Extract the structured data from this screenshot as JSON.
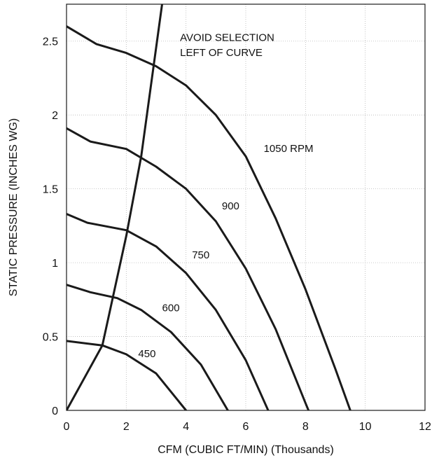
{
  "chart_data": {
    "type": "line",
    "xlabel": "CFM (CUBIC FT/MIN) (Thousands)",
    "ylabel": "STATIC PRESSURE (INCHES WG)",
    "xlim": [
      0,
      12
    ],
    "ylim": [
      0,
      2.75
    ],
    "x_ticks": [
      "0",
      "2",
      "4",
      "6",
      "8",
      "10",
      "12"
    ],
    "y_ticks": [
      "0",
      "0.5",
      "1",
      "1.5",
      "2",
      "2.5"
    ],
    "grid": true,
    "series": [
      {
        "name": "1050 RPM",
        "x": [
          0,
          1,
          2,
          3,
          4,
          5,
          6,
          7,
          8,
          9,
          9.5
        ],
        "y": [
          2.6,
          2.48,
          2.42,
          2.33,
          2.2,
          2.0,
          1.72,
          1.3,
          0.82,
          0.28,
          0
        ]
      },
      {
        "name": "900",
        "x": [
          0,
          0.8,
          2,
          3,
          4,
          5,
          6,
          7,
          8,
          8.1
        ],
        "y": [
          1.91,
          1.82,
          1.77,
          1.65,
          1.5,
          1.28,
          0.96,
          0.55,
          0.05,
          0
        ]
      },
      {
        "name": "750",
        "x": [
          0,
          0.7,
          2,
          3,
          4,
          5,
          6,
          6.75
        ],
        "y": [
          1.33,
          1.27,
          1.22,
          1.11,
          0.93,
          0.68,
          0.34,
          0
        ]
      },
      {
        "name": "600",
        "x": [
          0,
          0.8,
          1.7,
          2.5,
          3.5,
          4.5,
          5.4
        ],
        "y": [
          0.85,
          0.8,
          0.76,
          0.68,
          0.53,
          0.31,
          0
        ]
      },
      {
        "name": "450",
        "x": [
          0,
          1.2,
          2,
          3,
          4
        ],
        "y": [
          0.47,
          0.44,
          0.38,
          0.25,
          0
        ]
      }
    ],
    "selection_limit": {
      "x": [
        0,
        1.2,
        2.0,
        2.5,
        3.2
      ],
      "y": [
        0,
        0.44,
        1.18,
        1.72,
        2.75
      ]
    },
    "annotations": [
      {
        "text": "AVOID SELECTION",
        "x": 3.8,
        "y": 2.5
      },
      {
        "text": "LEFT OF CURVE",
        "x": 3.8,
        "y": 2.4
      },
      {
        "text": "1050 RPM",
        "x": 6.6,
        "y": 1.75
      },
      {
        "text": "900",
        "x": 5.2,
        "y": 1.36
      },
      {
        "text": "750",
        "x": 4.2,
        "y": 1.03
      },
      {
        "text": "600",
        "x": 3.2,
        "y": 0.67
      },
      {
        "text": "450",
        "x": 2.4,
        "y": 0.36
      }
    ]
  }
}
